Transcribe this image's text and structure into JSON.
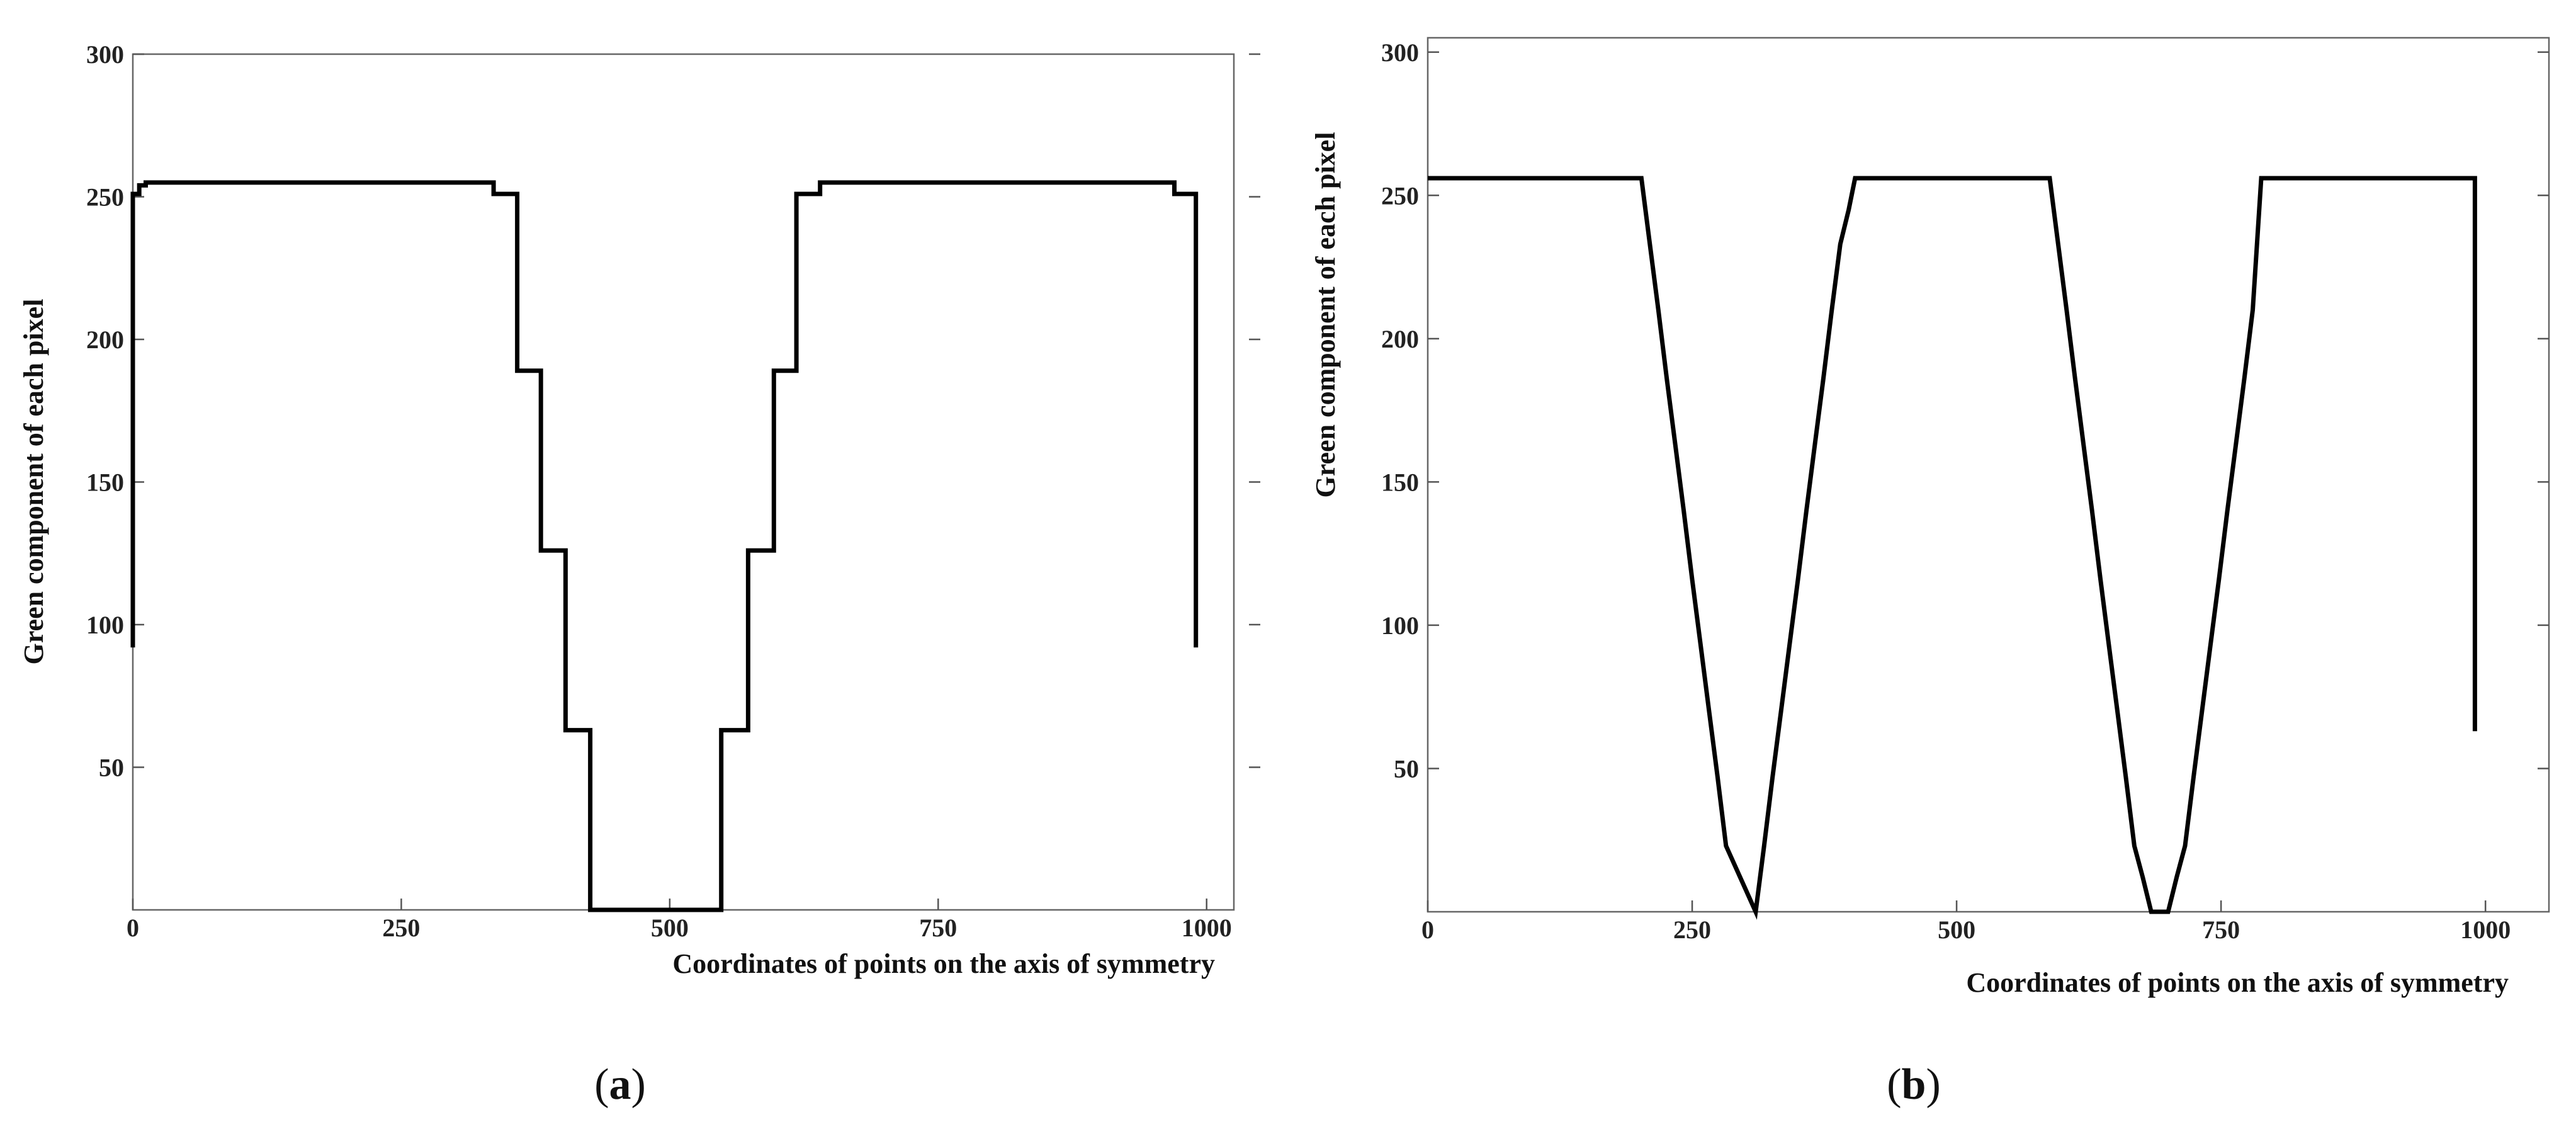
{
  "chart_data": [
    {
      "type": "line",
      "panel_label": "a",
      "xlabel": "Coordinates of points on the axis of symmetry",
      "ylabel": "Green component of each pixel",
      "xlim": [
        0,
        1050
      ],
      "ylim": [
        0,
        300
      ],
      "xticks": [
        0,
        250,
        500,
        750,
        1000
      ],
      "xtick_labels": [
        "0",
        "250",
        "500",
        "750",
        "1000"
      ],
      "yticks": [
        50,
        100,
        150,
        200,
        250,
        300
      ],
      "ytick_labels": [
        "50",
        "100",
        "150",
        "200",
        "250",
        "300"
      ],
      "grid": false,
      "series": [
        {
          "color": "#000000",
          "x": [
            0,
            0,
            6,
            6,
            12,
            12,
            336,
            336,
            358,
            358,
            380,
            380,
            403,
            403,
            426,
            426,
            548,
            548,
            573,
            573,
            597,
            597,
            618,
            618,
            640,
            640,
            970,
            970,
            990,
            990
          ],
          "y": [
            92,
            251,
            251,
            254,
            254,
            255,
            255,
            251,
            251,
            189,
            189,
            126,
            126,
            63,
            63,
            0,
            0,
            63,
            63,
            126,
            126,
            189,
            189,
            251,
            251,
            255,
            255,
            251,
            251,
            92
          ]
        }
      ]
    },
    {
      "type": "line",
      "panel_label": "b",
      "xlabel": "Coordinates of points on the axis of symmetry",
      "ylabel": "Green component of each pixel",
      "xlim": [
        0,
        1060
      ],
      "ylim": [
        0,
        305
      ],
      "xticks": [
        0,
        250,
        500,
        750,
        1000
      ],
      "xtick_labels": [
        "0",
        "250",
        "500",
        "750",
        "1000"
      ],
      "yticks": [
        50,
        100,
        150,
        200,
        250,
        300
      ],
      "ytick_labels": [
        "50",
        "100",
        "150",
        "200",
        "250",
        "300"
      ],
      "grid": false,
      "series": [
        {
          "color": "#000000",
          "x": [
            0,
            202,
            210,
            218,
            226,
            234,
            242,
            250,
            258,
            266,
            274,
            282,
            310,
            318,
            326,
            334,
            342,
            350,
            358,
            366,
            374,
            382,
            390,
            398,
            404,
            588,
            596,
            604,
            612,
            620,
            628,
            636,
            644,
            652,
            660,
            668,
            676,
            684,
            700,
            708,
            716,
            724,
            732,
            740,
            748,
            756,
            764,
            772,
            780,
            788,
            990,
            990
          ],
          "y": [
            256,
            256,
            233,
            210,
            186,
            163,
            140,
            116,
            93,
            70,
            47,
            23,
            0,
            23,
            47,
            70,
            93,
            116,
            140,
            163,
            186,
            210,
            233,
            245,
            256,
            256,
            233,
            210,
            186,
            163,
            140,
            116,
            93,
            70,
            47,
            23,
            12,
            0,
            0,
            12,
            23,
            47,
            70,
            93,
            116,
            140,
            163,
            186,
            210,
            256,
            256,
            63
          ]
        }
      ]
    }
  ]
}
